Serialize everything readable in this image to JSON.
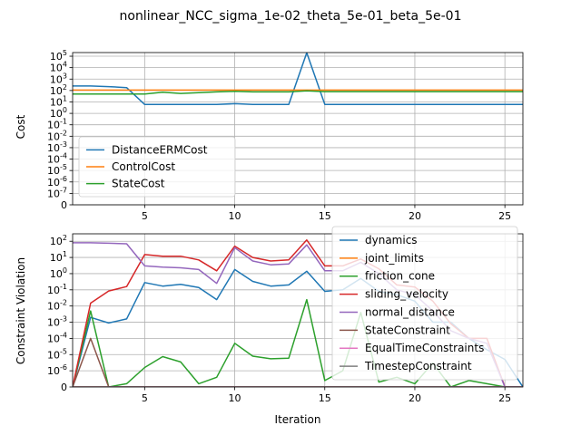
{
  "figure": {
    "title": "nonlinear_NCC_sigma_1e-02_theta_5e-01_beta_5e-01"
  },
  "colors": {
    "blue": "#1f77b4",
    "orange": "#ff7f0e",
    "green": "#2ca02c",
    "red": "#d62728",
    "purple": "#9467bd",
    "brown": "#8c564b",
    "pink": "#e377c2",
    "gray": "#7f7f7f",
    "grid": "#b0b0b0"
  },
  "chart_data": [
    {
      "type": "line",
      "ylabel": "Cost",
      "xlabel": "",
      "yscale": "symlog",
      "xlim": [
        1,
        26
      ],
      "x_ticks": [
        5,
        10,
        15,
        20,
        25
      ],
      "y_tick_labels": [
        "0",
        "10^-7",
        "10^-6",
        "10^-5",
        "10^-4",
        "10^-3",
        "10^-2",
        "10^-1",
        "10^0",
        "10^1",
        "10^2",
        "10^3",
        "10^4",
        "10^5"
      ],
      "grid": true,
      "legend_position": "lower-left",
      "x": [
        1,
        2,
        3,
        4,
        5,
        6,
        7,
        8,
        9,
        10,
        11,
        12,
        13,
        14,
        15,
        16,
        17,
        18,
        19,
        20,
        21,
        22,
        23,
        24,
        25,
        26
      ],
      "series": [
        {
          "name": "DistanceERMCost",
          "color": "#1f77b4",
          "values": [
            250,
            250,
            220,
            180,
            6,
            6,
            6,
            6,
            6,
            7,
            6,
            6,
            6,
            200000,
            6,
            6,
            6,
            6,
            6,
            6,
            6,
            6,
            6,
            6,
            6,
            6
          ]
        },
        {
          "name": "ControlCost",
          "color": "#ff7f0e",
          "values": [
            110,
            110,
            110,
            110,
            110,
            110,
            110,
            110,
            110,
            110,
            110,
            110,
            110,
            110,
            110,
            110,
            110,
            110,
            110,
            110,
            110,
            110,
            110,
            110,
            110,
            110
          ]
        },
        {
          "name": "StateCost",
          "color": "#2ca02c",
          "values": [
            50,
            50,
            50,
            50,
            50,
            70,
            55,
            65,
            75,
            85,
            75,
            75,
            75,
            95,
            80,
            80,
            80,
            80,
            80,
            80,
            80,
            80,
            80,
            80,
            80,
            80
          ]
        }
      ]
    },
    {
      "type": "line",
      "ylabel": "Constraint Violation",
      "xlabel": "Iteration",
      "yscale": "symlog",
      "xlim": [
        1,
        26
      ],
      "x_ticks": [
        5,
        10,
        15,
        20,
        25
      ],
      "y_tick_labels": [
        "0",
        "10^-6",
        "10^-5",
        "10^-4",
        "10^-3",
        "10^-2",
        "10^-1",
        "10^0",
        "10^1",
        "10^2"
      ],
      "grid": true,
      "legend_position": "right",
      "x": [
        1,
        2,
        3,
        4,
        5,
        6,
        7,
        8,
        9,
        10,
        11,
        12,
        13,
        14,
        15,
        16,
        17,
        18,
        19,
        20,
        21,
        22,
        23,
        24,
        25,
        26
      ],
      "series": [
        {
          "name": "dynamics",
          "color": "#1f77b4",
          "values": [
            0,
            0.002,
            0.0009,
            0.0016,
            0.28,
            0.17,
            0.22,
            0.14,
            0.025,
            1.8,
            0.33,
            0.17,
            0.2,
            1.4,
            0.08,
            0.1,
            0.5,
            0.08,
            0.05,
            0.02,
            0.001,
            0.001,
            0.0001,
            2e-05,
            5e-06,
            0
          ]
        },
        {
          "name": "joint_limits",
          "color": "#ff7f0e",
          "values": [
            0,
            0,
            0,
            0,
            0,
            0,
            0,
            0,
            0,
            0,
            0,
            0,
            0,
            0,
            0,
            0,
            0,
            0,
            0,
            0,
            0,
            0,
            0,
            0,
            0,
            0
          ]
        },
        {
          "name": "friction_cone",
          "color": "#2ca02c",
          "values": [
            0,
            0.005,
            0,
            2e-07,
            1.6e-06,
            7.5e-06,
            3.5e-06,
            2e-07,
            6e-07,
            5e-05,
            8e-06,
            5.5e-06,
            6e-06,
            0.025,
            4e-07,
            1e-06,
            0.004,
            3e-07,
            6e-07,
            2e-07,
            3e-06,
            0,
            4e-07,
            2e-07,
            0,
            0
          ]
        },
        {
          "name": "sliding_velocity",
          "color": "#d62728",
          "values": [
            0,
            0.015,
            0.085,
            0.16,
            15,
            12,
            12,
            7,
            1.5,
            50,
            10,
            6,
            7,
            120,
            3,
            3,
            8,
            2,
            0.2,
            0.15,
            0.02,
            0.0008,
            0.0001,
            0.0001,
            0,
            0
          ]
        },
        {
          "name": "normal_distance",
          "color": "#9467bd",
          "values": [
            80,
            80,
            75,
            70,
            3,
            2.5,
            2.3,
            1.8,
            0.25,
            40,
            6,
            3.5,
            4,
            60,
            1.5,
            1.5,
            5,
            1,
            0.1,
            0.05,
            0.005,
            0.0003,
            0.0001,
            5e-05,
            0,
            0
          ]
        },
        {
          "name": "StateConstraint",
          "color": "#8c564b",
          "values": [
            0,
            0.0001,
            0,
            0,
            0,
            0,
            0,
            0,
            0,
            0,
            0,
            0,
            0,
            0,
            0,
            0,
            0,
            0,
            0,
            0,
            0,
            0,
            0,
            0,
            0,
            0
          ]
        },
        {
          "name": "EqualTimeConstraints",
          "color": "#e377c2",
          "values": [
            0,
            0,
            0,
            0,
            0,
            0,
            0,
            0,
            0,
            0,
            0,
            0,
            0,
            0,
            0,
            0,
            0,
            0,
            0,
            0,
            0,
            0,
            0,
            0,
            0,
            0
          ]
        },
        {
          "name": "TimestepConstraint",
          "color": "#7f7f7f",
          "values": [
            0,
            0,
            0,
            0,
            0,
            0,
            0,
            0,
            0,
            0,
            0,
            0,
            0,
            0,
            0,
            0,
            0,
            0,
            0,
            0,
            0,
            0,
            0,
            0,
            0,
            0
          ]
        }
      ]
    }
  ]
}
